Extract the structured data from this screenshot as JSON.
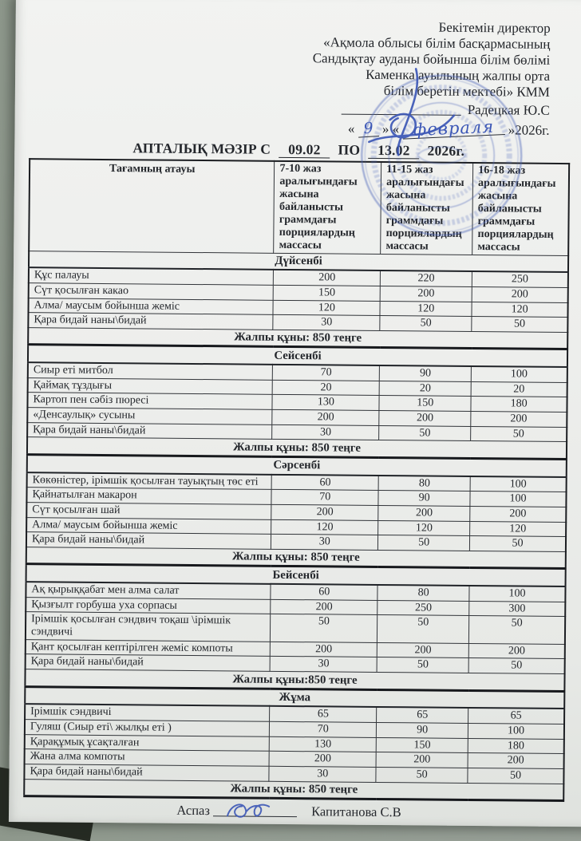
{
  "approval": {
    "lines": [
      "Бекітемін директор",
      "«Ақмола облысы білім басқармасының",
      "Сандықтау ауданы бойынша білім бөлімі",
      "Каменка ауылының жалпы орта",
      "білім беретін мектебі» КММ"
    ],
    "approver": "Радецкая Ю.С",
    "date": {
      "open_day": "«",
      "day": "9",
      "between": "» «",
      "month": "февраля",
      "close": "»2026г."
    }
  },
  "title": {
    "prefix": "АПТАЛЫҚ МӘЗІР С",
    "date_from": "09.02",
    "po": "ПО",
    "date_to": "13.02",
    "year": "2026г."
  },
  "table": {
    "columns": [
      "Тағамның атауы",
      "7-10 жаз аралығындағы жасына байланысты граммдағы порциялардың массасы",
      "11-15 жаз аралығындағы жасына байланысты граммдағы порциялардың массасы",
      "16-18 жаз аралығындағы жасына байланысты граммдағы порциялардың массасы"
    ],
    "days": [
      {
        "name": "Дүйсенбі",
        "items": [
          {
            "dish": "Құс палауы",
            "values": [
              "200",
              "220",
              "250"
            ]
          },
          {
            "dish": "Сүт қосылған какао",
            "values": [
              "150",
              "200",
              "200"
            ]
          },
          {
            "dish": "Алма/ маусым бойынша жеміс",
            "values": [
              "120",
              "120",
              "120"
            ]
          },
          {
            "dish": "Қара бидай наны\\бидай",
            "values": [
              "30",
              "50",
              "50"
            ]
          }
        ],
        "total": "Жалпы құны: 850 теңге"
      },
      {
        "name": "Сейсенбі",
        "items": [
          {
            "dish": "Сиыр еті митбол",
            "values": [
              "70",
              "90",
              "100"
            ]
          },
          {
            "dish": "Қаймақ тұздығы",
            "values": [
              "20",
              "20",
              "20"
            ]
          },
          {
            "dish": "Картоп пен сәбіз пюресі",
            "values": [
              "130",
              "150",
              "180"
            ]
          },
          {
            "dish": "«Денсаулық» сусыны",
            "values": [
              "200",
              "200",
              "200"
            ]
          },
          {
            "dish": "Қара бидай наны\\бидай",
            "values": [
              "30",
              "50",
              "50"
            ]
          }
        ],
        "total": "Жалпы құны: 850 теңге"
      },
      {
        "name": "Сәрсенбі",
        "items": [
          {
            "dish": "Көкөністер, ірімшік қосылған тауықтың төс еті",
            "values": [
              "60",
              "80",
              "100"
            ]
          },
          {
            "dish": "Қайнатылған макарон",
            "values": [
              "70",
              "90",
              "100"
            ]
          },
          {
            "dish": "Сүт қосылған шай",
            "values": [
              "200",
              "200",
              "200"
            ]
          },
          {
            "dish": "Алма/ маусым бойынша жеміс",
            "values": [
              "120",
              "120",
              "120"
            ]
          },
          {
            "dish": "Қара бидай наны\\бидай",
            "values": [
              "30",
              "50",
              "50"
            ]
          }
        ],
        "total": "Жалпы құны: 850 теңге"
      },
      {
        "name": "Бейсенбі",
        "items": [
          {
            "dish": "Ақ қырыққабат мен алма салат",
            "values": [
              "60",
              "80",
              "100"
            ]
          },
          {
            "dish": "Қызғылт горбуша уха сорпасы",
            "values": [
              "200",
              "250",
              "300"
            ]
          },
          {
            "dish": "Ірімшік қосылған сэндвич тоқаш \\ірімшік сэндвичі",
            "values": [
              "50",
              "50",
              "50"
            ]
          },
          {
            "dish": "Қант қосылған кептірілген жеміс компоты",
            "values": [
              "200",
              "200",
              "200"
            ]
          },
          {
            "dish": "Қара бидай наны\\бидай",
            "values": [
              "30",
              "50",
              "50"
            ]
          }
        ],
        "total": "Жалпы құны:850 теңге"
      },
      {
        "name": "Жұма",
        "items": [
          {
            "dish": "Ірімшік сэндвичі",
            "values": [
              "65",
              "65",
              "65"
            ]
          },
          {
            "dish": "Гуляш (Сиыр еті\\ жылқы еті )",
            "values": [
              "70",
              "90",
              "100"
            ]
          },
          {
            "dish": "Қарақұмық ұсақталған",
            "values": [
              "130",
              "150",
              "180"
            ]
          },
          {
            "dish": "Жана алма компоты",
            "values": [
              "200",
              "200",
              "200"
            ]
          },
          {
            "dish": "Қара бидай наны\\бидай",
            "values": [
              "30",
              "50",
              "50"
            ]
          }
        ],
        "total": "Жалпы құны: 850 теңге"
      }
    ]
  },
  "footer": {
    "label": "Аспаз",
    "name": "Капитанова С.В"
  },
  "ink": {
    "stamp_color": "#4a63b8",
    "handwriting_color": "#3c57b6",
    "print_color": "#24272c"
  }
}
